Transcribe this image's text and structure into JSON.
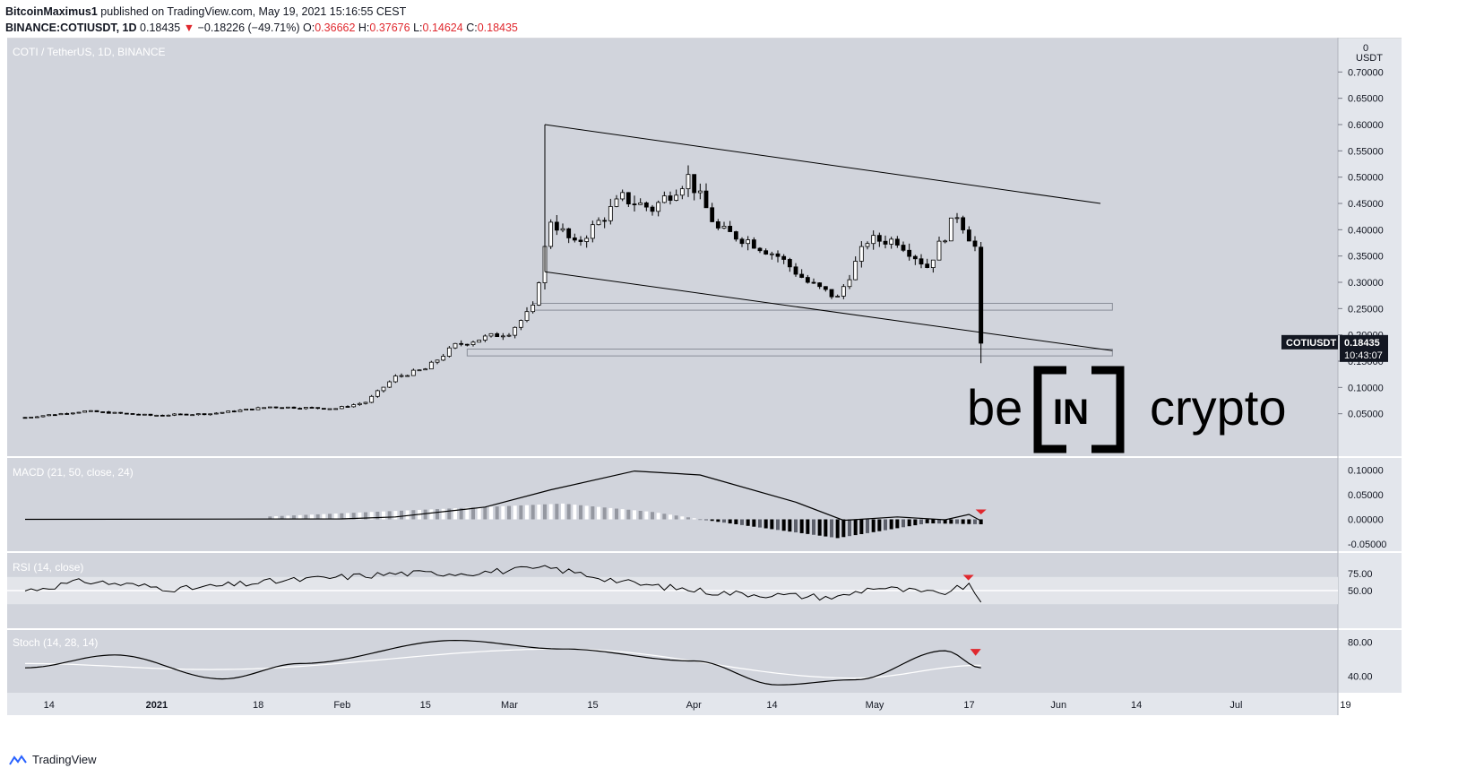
{
  "header": {
    "author": "BitcoinMaximus1",
    "published": " published on TradingView.com, May 19, 2021 15:16:55 CEST",
    "symbol": "BINANCE:COTIUSDT, 1D",
    "last": "0.18435",
    "arrow": "▼",
    "change": "−0.18226 (−49.71%)",
    "o_label": "O:",
    "o": "0.36662",
    "h_label": "H:",
    "h": "0.37676",
    "l_label": "L:",
    "l": "0.14624",
    "c_label": "C:",
    "c": "0.18435"
  },
  "price_pane": {
    "title": "COTI / TetherUS, 1D, BINANCE",
    "unit": "USDT",
    "zero_label": "0",
    "price_badge_symbol": "COTIUSDT",
    "price_badge_value": "0.18435",
    "price_badge_timer": "10:43:07"
  },
  "watermark": {
    "left": "be",
    "mid": "IN",
    "right": "crypto"
  },
  "macd_title": "MACD (21, 50, close, 24)",
  "rsi_title": "RSI (14, close)",
  "stoch_title": "Stoch (14, 28, 14)",
  "footer": {
    "brand": "TradingView"
  },
  "colors": {
    "pane_bg": "#d1d4dc",
    "axis_bg": "#e3e6ec",
    "signal_arrow": "#e0282e",
    "text_red": "#e0282e"
  },
  "chart_data": [
    {
      "type": "candlestick",
      "title": "COTI / TetherUS, 1D, BINANCE",
      "ylabel": "USDT",
      "ylim": [
        0.0,
        0.75
      ],
      "y_ticks": [
        "0.70000",
        "0.65000",
        "0.60000",
        "0.55000",
        "0.50000",
        "0.45000",
        "0.40000",
        "0.35000",
        "0.30000",
        "0.25000",
        "0.20000",
        "0.15000",
        "0.10000",
        "0.05000"
      ],
      "x_ticks": [
        "14",
        "2021",
        "18",
        "Feb",
        "15",
        "Mar",
        "15",
        "Apr",
        "14",
        "May",
        "17",
        "Jun",
        "14",
        "Jul",
        "19"
      ],
      "date_range": [
        "2020-12-10",
        "2021-05-19"
      ],
      "closes_sampled": [
        {
          "date": "2020-12-10",
          "close": 0.043
        },
        {
          "date": "2020-12-20",
          "close": 0.055
        },
        {
          "date": "2020-12-31",
          "close": 0.047
        },
        {
          "date": "2021-01-10",
          "close": 0.05
        },
        {
          "date": "2021-01-20",
          "close": 0.063
        },
        {
          "date": "2021-01-31",
          "close": 0.06
        },
        {
          "date": "2021-02-05",
          "close": 0.072
        },
        {
          "date": "2021-02-10",
          "close": 0.12
        },
        {
          "date": "2021-02-15",
          "close": 0.135
        },
        {
          "date": "2021-02-20",
          "close": 0.18
        },
        {
          "date": "2021-02-25",
          "close": 0.195
        },
        {
          "date": "2021-03-01",
          "close": 0.205
        },
        {
          "date": "2021-03-05",
          "close": 0.25
        },
        {
          "date": "2021-03-08",
          "close": 0.42
        },
        {
          "date": "2021-03-12",
          "close": 0.37
        },
        {
          "date": "2021-03-20",
          "close": 0.46
        },
        {
          "date": "2021-03-25",
          "close": 0.44
        },
        {
          "date": "2021-03-31",
          "close": 0.5
        },
        {
          "date": "2021-04-05",
          "close": 0.4
        },
        {
          "date": "2021-04-10",
          "close": 0.38
        },
        {
          "date": "2021-04-15",
          "close": 0.35
        },
        {
          "date": "2021-04-20",
          "close": 0.3
        },
        {
          "date": "2021-04-25",
          "close": 0.27
        },
        {
          "date": "2021-04-30",
          "close": 0.38
        },
        {
          "date": "2021-05-05",
          "close": 0.38
        },
        {
          "date": "2021-05-10",
          "close": 0.33
        },
        {
          "date": "2021-05-15",
          "close": 0.43
        },
        {
          "date": "2021-05-18",
          "close": 0.367
        },
        {
          "date": "2021-05-19",
          "close": 0.18435
        }
      ],
      "last_candle": {
        "date": "2021-05-19",
        "open": 0.36662,
        "high": 0.37676,
        "low": 0.14624,
        "close": 0.18435
      },
      "channel": {
        "upper": [
          {
            "date": "2021-03-07",
            "value": 0.6
          },
          {
            "date": "2021-06-08",
            "value": 0.45
          }
        ],
        "lower": [
          {
            "date": "2021-03-07",
            "value": 0.32
          },
          {
            "date": "2021-06-10",
            "value": 0.17
          }
        ]
      },
      "horizontal_zones": [
        {
          "from": 0.247,
          "to": 0.26,
          "start": "2021-03-05",
          "end": "2021-06-10"
        },
        {
          "from": 0.16,
          "to": 0.173,
          "start": "2021-02-22",
          "end": "2021-06-10"
        }
      ],
      "last_price": 0.18435
    },
    {
      "type": "line",
      "title": "MACD (21, 50, close, 24)",
      "ylim": [
        -0.05,
        0.11
      ],
      "y_ticks": [
        "0.10000",
        "0.05000",
        "0.00000",
        "-0.05000"
      ],
      "macd": [
        {
          "date": "2020-12-10",
          "value": 0.0
        },
        {
          "date": "2021-02-01",
          "value": 0.001
        },
        {
          "date": "2021-02-10",
          "value": 0.005
        },
        {
          "date": "2021-02-25",
          "value": 0.025
        },
        {
          "date": "2021-03-08",
          "value": 0.06
        },
        {
          "date": "2021-03-22",
          "value": 0.098
        },
        {
          "date": "2021-04-02",
          "value": 0.09
        },
        {
          "date": "2021-04-18",
          "value": 0.035
        },
        {
          "date": "2021-04-26",
          "value": -0.002
        },
        {
          "date": "2021-05-05",
          "value": 0.005
        },
        {
          "date": "2021-05-13",
          "value": -0.001
        },
        {
          "date": "2021-05-17",
          "value": 0.01
        },
        {
          "date": "2021-05-19",
          "value": -0.003
        }
      ],
      "histogram": [
        {
          "date": "2021-03-10",
          "value": 0.032
        },
        {
          "date": "2021-03-25",
          "value": 0.015
        },
        {
          "date": "2021-04-05",
          "value": -0.005
        },
        {
          "date": "2021-04-25",
          "value": -0.038
        },
        {
          "date": "2021-05-10",
          "value": -0.008
        },
        {
          "date": "2021-05-19",
          "value": -0.01
        }
      ],
      "signal": "bearish cross (red marker)"
    },
    {
      "type": "line",
      "title": "RSI (14, close)",
      "ylim": [
        0,
        100
      ],
      "y_ticks": [
        "75.00",
        "50.00"
      ],
      "band": [
        30,
        70
      ],
      "values": [
        {
          "date": "2020-12-10",
          "value": 50
        },
        {
          "date": "2020-12-20",
          "value": 64
        },
        {
          "date": "2021-01-05",
          "value": 52
        },
        {
          "date": "2021-01-20",
          "value": 63
        },
        {
          "date": "2021-02-10",
          "value": 75
        },
        {
          "date": "2021-02-22",
          "value": 76
        },
        {
          "date": "2021-03-08",
          "value": 83
        },
        {
          "date": "2021-03-22",
          "value": 60
        },
        {
          "date": "2021-04-05",
          "value": 47
        },
        {
          "date": "2021-04-25",
          "value": 40
        },
        {
          "date": "2021-05-01",
          "value": 55
        },
        {
          "date": "2021-05-12",
          "value": 45
        },
        {
          "date": "2021-05-17",
          "value": 58
        },
        {
          "date": "2021-05-19",
          "value": 33
        }
      ]
    },
    {
      "type": "line",
      "title": "Stoch (14, 28, 14)",
      "ylim": [
        25,
        90
      ],
      "y_ticks": [
        "80.00",
        "40.00"
      ],
      "k": [
        {
          "date": "2020-12-10",
          "value": 50
        },
        {
          "date": "2020-12-25",
          "value": 65
        },
        {
          "date": "2021-01-12",
          "value": 37
        },
        {
          "date": "2021-01-25",
          "value": 55
        },
        {
          "date": "2021-02-20",
          "value": 82
        },
        {
          "date": "2021-03-10",
          "value": 72
        },
        {
          "date": "2021-04-01",
          "value": 58
        },
        {
          "date": "2021-04-15",
          "value": 30
        },
        {
          "date": "2021-04-28",
          "value": 36
        },
        {
          "date": "2021-05-13",
          "value": 70
        },
        {
          "date": "2021-05-19",
          "value": 50
        }
      ],
      "d": [
        {
          "date": "2020-12-10",
          "value": 55
        },
        {
          "date": "2021-01-10",
          "value": 48
        },
        {
          "date": "2021-03-10",
          "value": 72
        },
        {
          "date": "2021-04-28",
          "value": 38
        },
        {
          "date": "2021-05-19",
          "value": 53
        }
      ]
    }
  ]
}
